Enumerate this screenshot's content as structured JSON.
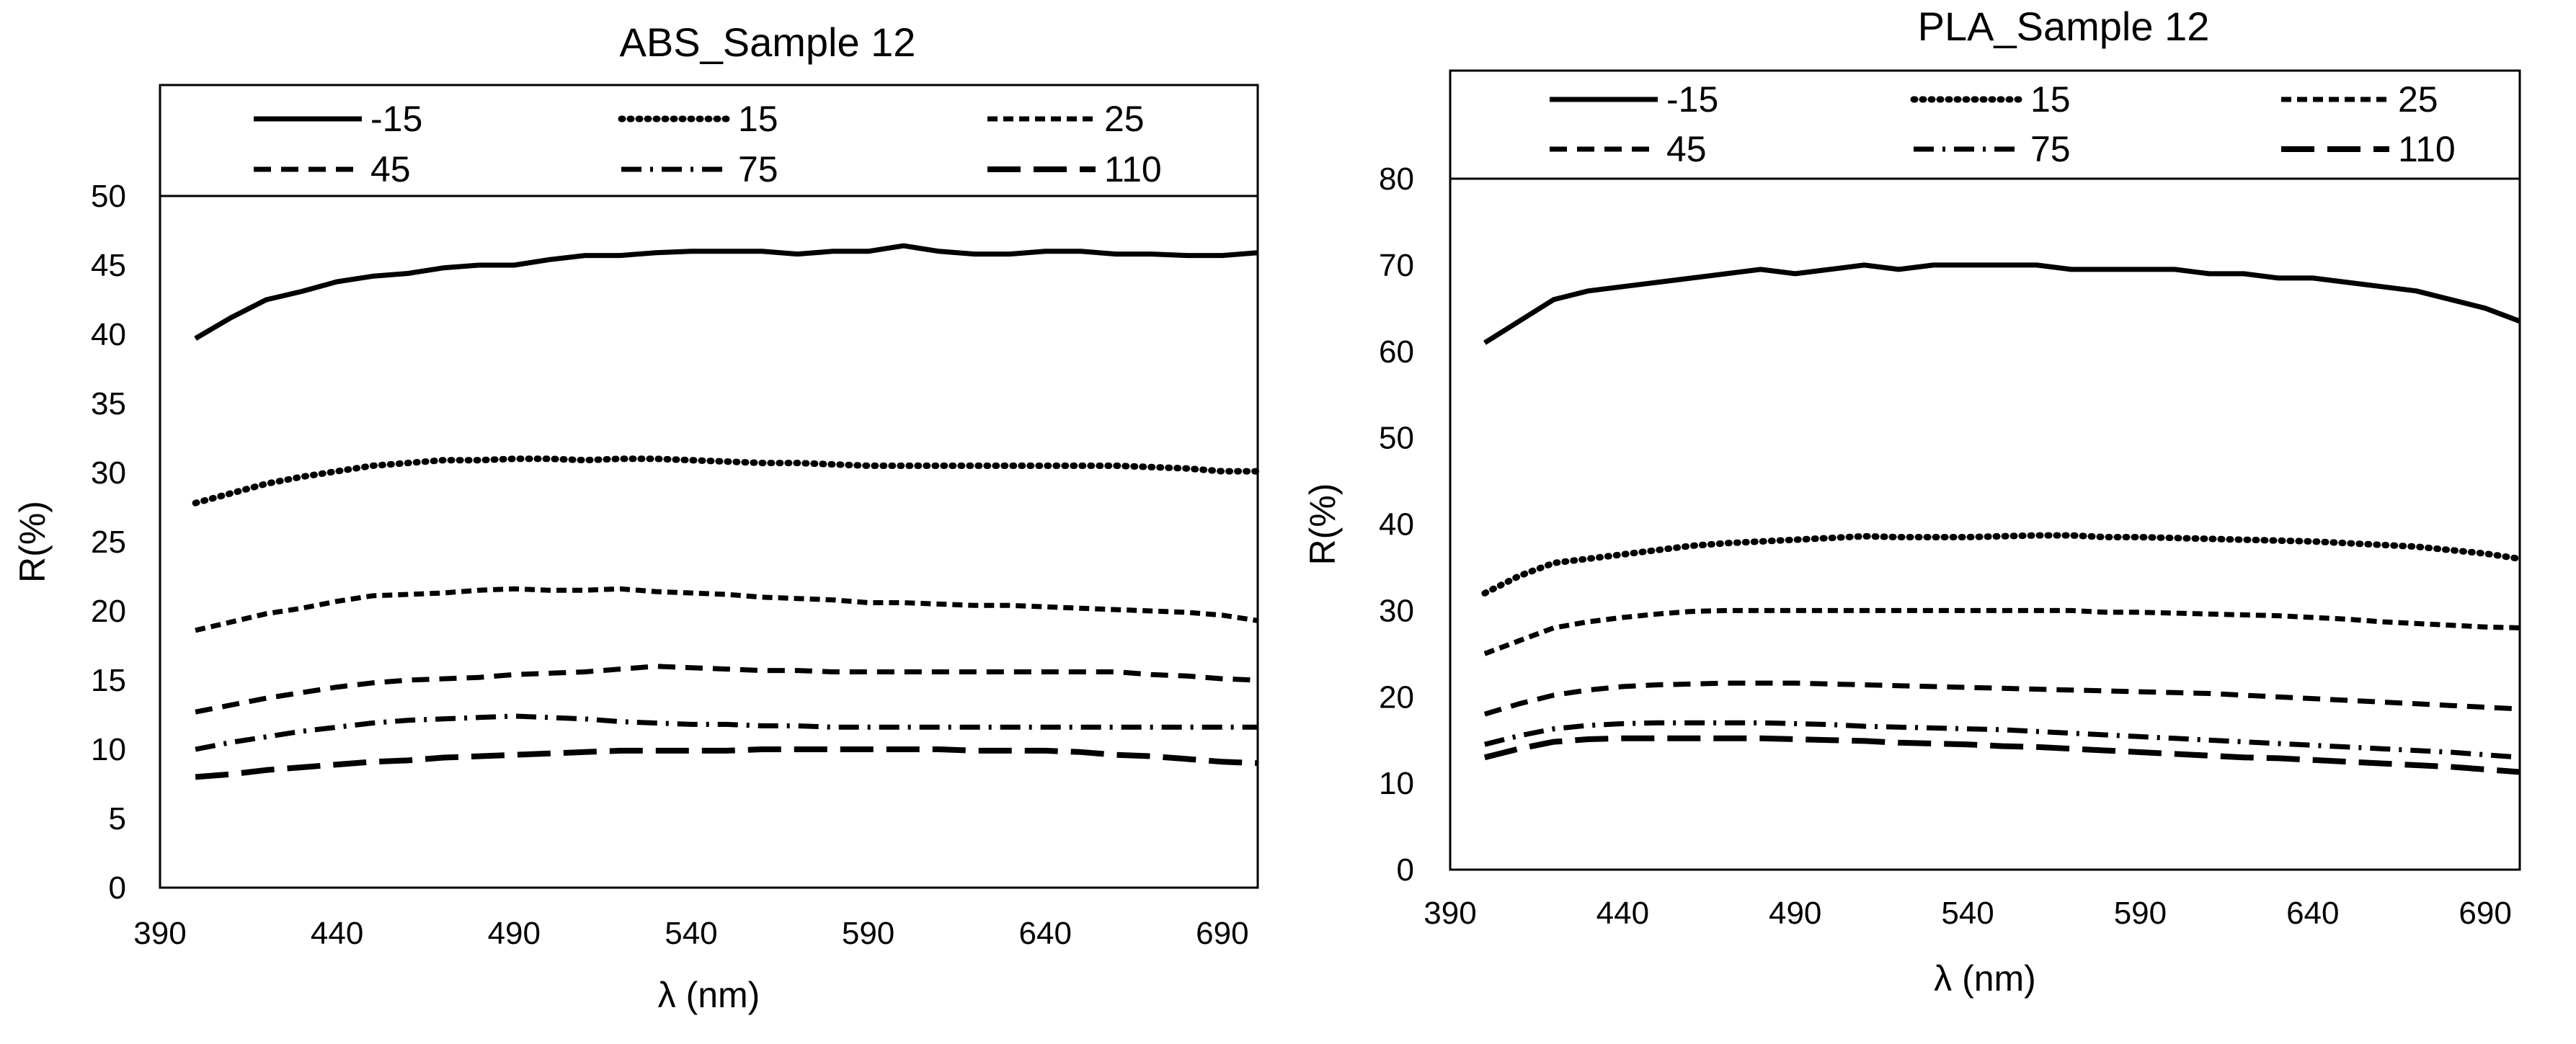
{
  "charts": [
    {
      "chart_data": {
        "type": "line",
        "title": "ABS_Sample 12",
        "xlabel": "λ (nm)",
        "ylabel": "R(%)",
        "xlim": [
          390,
          700
        ],
        "ylim": [
          0,
          50
        ],
        "xticks": [
          390,
          440,
          490,
          540,
          590,
          640,
          690
        ],
        "yticks": [
          0,
          5,
          10,
          15,
          20,
          25,
          30,
          35,
          40,
          45,
          50
        ],
        "x": [
          400,
          410,
          420,
          430,
          440,
          450,
          460,
          470,
          480,
          490,
          500,
          510,
          520,
          530,
          540,
          550,
          560,
          570,
          580,
          590,
          600,
          610,
          620,
          630,
          640,
          650,
          660,
          670,
          680,
          690,
          700
        ],
        "series": [
          {
            "name": "-15",
            "style": "solid",
            "values": [
              39.7,
              41.2,
              42.5,
              43.1,
              43.8,
              44.2,
              44.4,
              44.8,
              45.0,
              45.0,
              45.4,
              45.7,
              45.7,
              45.9,
              46.0,
              46.0,
              46.0,
              45.8,
              46.0,
              46.0,
              46.4,
              46.0,
              45.8,
              45.8,
              46.0,
              46.0,
              45.8,
              45.8,
              45.7,
              45.7,
              45.9
            ]
          },
          {
            "name": "15",
            "style": "dotted",
            "values": [
              27.8,
              28.5,
              29.2,
              29.7,
              30.1,
              30.5,
              30.7,
              30.9,
              30.9,
              31.0,
              31.0,
              30.9,
              31.0,
              31.0,
              30.9,
              30.8,
              30.7,
              30.7,
              30.6,
              30.5,
              30.5,
              30.5,
              30.5,
              30.5,
              30.5,
              30.5,
              30.5,
              30.4,
              30.3,
              30.1,
              30.1
            ]
          },
          {
            "name": "25",
            "style": "shortdash",
            "values": [
              18.6,
              19.2,
              19.8,
              20.2,
              20.7,
              21.1,
              21.2,
              21.3,
              21.5,
              21.6,
              21.5,
              21.5,
              21.6,
              21.4,
              21.3,
              21.2,
              21.0,
              20.9,
              20.8,
              20.6,
              20.6,
              20.5,
              20.4,
              20.4,
              20.3,
              20.2,
              20.1,
              20.0,
              19.9,
              19.7,
              19.3
            ]
          },
          {
            "name": "45",
            "style": "dash",
            "values": [
              12.7,
              13.2,
              13.7,
              14.1,
              14.5,
              14.8,
              15.0,
              15.1,
              15.2,
              15.4,
              15.5,
              15.6,
              15.8,
              16.0,
              15.9,
              15.8,
              15.7,
              15.7,
              15.6,
              15.6,
              15.6,
              15.6,
              15.6,
              15.6,
              15.6,
              15.6,
              15.6,
              15.4,
              15.3,
              15.1,
              15.0
            ]
          },
          {
            "name": "75",
            "style": "dashdot",
            "values": [
              10.0,
              10.5,
              10.9,
              11.3,
              11.6,
              11.9,
              12.1,
              12.2,
              12.3,
              12.4,
              12.3,
              12.2,
              12.0,
              11.9,
              11.8,
              11.8,
              11.7,
              11.7,
              11.6,
              11.6,
              11.6,
              11.6,
              11.6,
              11.6,
              11.6,
              11.6,
              11.6,
              11.6,
              11.6,
              11.6,
              11.6
            ]
          },
          {
            "name": "110",
            "style": "longdash",
            "values": [
              8.0,
              8.2,
              8.5,
              8.7,
              8.9,
              9.1,
              9.2,
              9.4,
              9.5,
              9.6,
              9.7,
              9.8,
              9.9,
              9.9,
              9.9,
              9.9,
              10.0,
              10.0,
              10.0,
              10.0,
              10.0,
              10.0,
              9.9,
              9.9,
              9.9,
              9.8,
              9.6,
              9.5,
              9.3,
              9.1,
              9.0
            ]
          }
        ]
      }
    },
    {
      "chart_data": {
        "type": "line",
        "title": "PLA_Sample 12",
        "xlabel": "λ (nm)",
        "ylabel": "R(%)",
        "xlim": [
          390,
          700
        ],
        "ylim": [
          0,
          80
        ],
        "xticks": [
          390,
          440,
          490,
          540,
          590,
          640,
          690
        ],
        "yticks": [
          0,
          10,
          20,
          30,
          40,
          50,
          60,
          70,
          80
        ],
        "x": [
          400,
          410,
          420,
          430,
          440,
          450,
          460,
          470,
          480,
          490,
          500,
          510,
          520,
          530,
          540,
          550,
          560,
          570,
          580,
          590,
          600,
          610,
          620,
          630,
          640,
          650,
          660,
          670,
          680,
          690,
          700
        ],
        "series": [
          {
            "name": "-15",
            "style": "solid",
            "values": [
              61.0,
              63.5,
              66.0,
              67.0,
              67.5,
              68.0,
              68.5,
              69.0,
              69.5,
              69.0,
              69.5,
              70.0,
              69.5,
              70.0,
              70.0,
              70.0,
              70.0,
              69.5,
              69.5,
              69.5,
              69.5,
              69.0,
              69.0,
              68.5,
              68.5,
              68.0,
              67.5,
              67.0,
              66.0,
              65.0,
              63.5
            ]
          },
          {
            "name": "15",
            "style": "dotted",
            "values": [
              32.0,
              34.0,
              35.5,
              36.0,
              36.5,
              37.0,
              37.5,
              37.8,
              38.0,
              38.2,
              38.4,
              38.6,
              38.5,
              38.5,
              38.5,
              38.6,
              38.7,
              38.7,
              38.5,
              38.5,
              38.4,
              38.3,
              38.2,
              38.1,
              38.0,
              37.8,
              37.6,
              37.4,
              37.0,
              36.6,
              36.0
            ]
          },
          {
            "name": "25",
            "style": "shortdash",
            "values": [
              25.0,
              26.5,
              28.0,
              28.7,
              29.2,
              29.6,
              29.9,
              30.0,
              30.0,
              30.0,
              30.0,
              30.0,
              30.0,
              30.0,
              30.0,
              30.0,
              30.0,
              30.0,
              29.8,
              29.8,
              29.7,
              29.6,
              29.5,
              29.4,
              29.2,
              29.0,
              28.7,
              28.5,
              28.3,
              28.1,
              28.0
            ]
          },
          {
            "name": "45",
            "style": "dash",
            "values": [
              18.0,
              19.2,
              20.2,
              20.8,
              21.2,
              21.4,
              21.5,
              21.6,
              21.6,
              21.6,
              21.5,
              21.4,
              21.3,
              21.2,
              21.1,
              21.0,
              20.9,
              20.8,
              20.7,
              20.6,
              20.5,
              20.4,
              20.2,
              20.0,
              19.8,
              19.6,
              19.4,
              19.2,
              19.0,
              18.8,
              18.6
            ]
          },
          {
            "name": "75",
            "style": "dashdot",
            "values": [
              14.5,
              15.5,
              16.3,
              16.7,
              16.9,
              17.0,
              17.0,
              17.0,
              17.0,
              16.9,
              16.8,
              16.6,
              16.5,
              16.4,
              16.3,
              16.2,
              16.0,
              15.8,
              15.6,
              15.4,
              15.2,
              15.0,
              14.8,
              14.6,
              14.4,
              14.2,
              14.0,
              13.8,
              13.6,
              13.3,
              13.0
            ]
          },
          {
            "name": "110",
            "style": "longdash",
            "values": [
              13.0,
              14.0,
              14.8,
              15.1,
              15.2,
              15.2,
              15.2,
              15.2,
              15.2,
              15.1,
              15.0,
              14.9,
              14.7,
              14.6,
              14.5,
              14.3,
              14.2,
              14.0,
              13.8,
              13.6,
              13.4,
              13.2,
              13.0,
              12.9,
              12.7,
              12.5,
              12.3,
              12.1,
              11.9,
              11.6,
              11.3
            ]
          }
        ]
      }
    }
  ]
}
